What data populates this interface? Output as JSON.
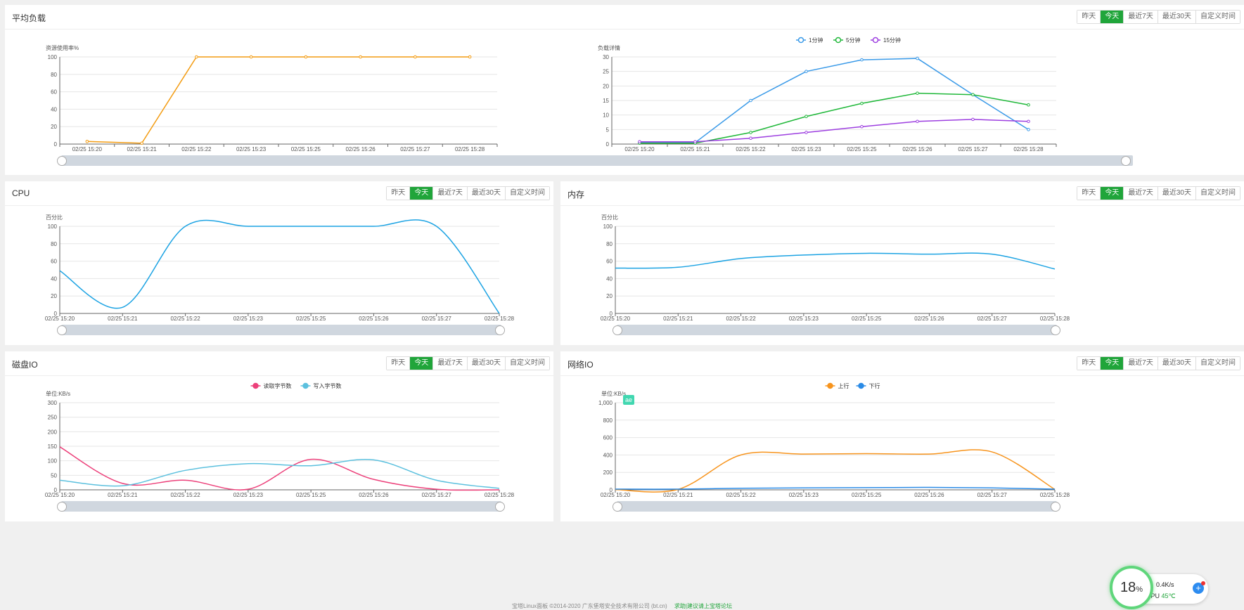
{
  "range_buttons": [
    "昨天",
    "今天",
    "最近7天",
    "最近30天",
    "自定义时间"
  ],
  "panels": {
    "load": {
      "title": "平均负载"
    },
    "cpu": {
      "title": "CPU"
    },
    "memory": {
      "title": "内存"
    },
    "disk": {
      "title": "磁盘IO"
    },
    "network": {
      "title": "网络IO"
    }
  },
  "chart_data": [
    {
      "id": "load-usage",
      "type": "line",
      "ylabel": "资源使用率%",
      "ylim": [
        0,
        100
      ],
      "yticks": [
        0,
        20,
        40,
        60,
        80,
        100
      ],
      "categories": [
        "02/25 15:20",
        "02/25 15:21",
        "02/25 15:22",
        "02/25 15:23",
        "02/25 15:25",
        "02/25 15:26",
        "02/25 15:27",
        "02/25 15:28"
      ],
      "x": [
        0.5,
        1.5,
        2.5,
        3.5,
        4.5,
        5.5,
        6.5,
        7.5
      ],
      "series": [
        {
          "name": "资源使用率",
          "color": "#f39c12",
          "values": [
            3,
            1,
            100,
            100,
            100,
            100,
            100,
            100
          ]
        }
      ]
    },
    {
      "id": "load-detail",
      "type": "line",
      "ylabel": "负载详情",
      "ylim": [
        0,
        30
      ],
      "yticks": [
        0,
        5,
        10,
        15,
        20,
        25,
        30
      ],
      "categories": [
        "02/25 15:20",
        "02/25 15:21",
        "02/25 15:22",
        "02/25 15:23",
        "02/25 15:25",
        "02/25 15:26",
        "02/25 15:27",
        "02/25 15:28"
      ],
      "x": [
        0.5,
        1.5,
        2.5,
        3.5,
        4.5,
        5.5,
        6.5,
        7.5
      ],
      "legend": [
        "1分钟",
        "5分钟",
        "15分钟"
      ],
      "series": [
        {
          "name": "1分钟",
          "color": "#3a9ae8",
          "values": [
            0.5,
            0.5,
            15,
            25,
            29,
            29.5,
            17,
            5
          ]
        },
        {
          "name": "5分钟",
          "color": "#20b83a",
          "values": [
            0.3,
            0.3,
            4,
            9.5,
            14,
            17.5,
            17,
            13.5
          ]
        },
        {
          "name": "15分钟",
          "color": "#9d3fe0",
          "values": [
            0.8,
            0.8,
            2,
            4,
            6,
            7.8,
            8.5,
            7.8
          ]
        }
      ]
    },
    {
      "id": "cpu",
      "type": "line",
      "ylabel": "百分比",
      "ylim": [
        0,
        100
      ],
      "yticks": [
        0,
        20,
        40,
        60,
        80,
        100
      ],
      "categories": [
        "02/25 15:20",
        "02/25 15:21",
        "02/25 15:22",
        "02/25 15:23",
        "02/25 15:25",
        "02/25 15:26",
        "02/25 15:27",
        "02/25 15:28"
      ],
      "x": [
        0,
        1,
        2,
        3,
        4,
        5,
        6,
        7
      ],
      "series": [
        {
          "name": "CPU",
          "color": "#1ca3e3",
          "values": [
            49,
            7,
            100,
            100,
            100,
            100,
            100,
            0
          ]
        }
      ]
    },
    {
      "id": "memory",
      "type": "line",
      "ylabel": "百分比",
      "ylim": [
        0,
        100
      ],
      "yticks": [
        0,
        20,
        40,
        60,
        80,
        100
      ],
      "categories": [
        "02/25 15:20",
        "02/25 15:21",
        "02/25 15:22",
        "02/25 15:23",
        "02/25 15:25",
        "02/25 15:26",
        "02/25 15:27",
        "02/25 15:28"
      ],
      "x": [
        0,
        1,
        2,
        3,
        4,
        5,
        6,
        7
      ],
      "series": [
        {
          "name": "内存",
          "color": "#1ca3e3",
          "values": [
            52,
            53,
            63,
            67,
            69,
            68,
            68,
            51
          ]
        }
      ]
    },
    {
      "id": "disk",
      "type": "line",
      "ylabel": "单位:KB/s",
      "ylim": [
        0,
        300
      ],
      "yticks": [
        0,
        50,
        100,
        150,
        200,
        250,
        300
      ],
      "categories": [
        "02/25 15:20",
        "02/25 15:21",
        "02/25 15:22",
        "02/25 15:23",
        "02/25 15:25",
        "02/25 15:26",
        "02/25 15:27",
        "02/25 15:28"
      ],
      "x": [
        0,
        1,
        2,
        3,
        4,
        5,
        6,
        7
      ],
      "legend": [
        "读取字节数",
        "写入字节数"
      ],
      "series": [
        {
          "name": "读取字节数",
          "color": "#ec407a",
          "values": [
            148,
            22,
            33,
            2,
            105,
            36,
            2,
            0
          ]
        },
        {
          "name": "写入字节数",
          "color": "#5bc0de",
          "values": [
            33,
            14,
            67,
            90,
            83,
            103,
            33,
            5
          ]
        }
      ]
    },
    {
      "id": "network",
      "type": "line",
      "ylabel": "单位:KB/s",
      "ylim": [
        0,
        1000
      ],
      "yticks": [
        0,
        200,
        400,
        600,
        800,
        1000
      ],
      "ytick_labels": [
        "0",
        "200",
        "400",
        "600",
        "800",
        "1,000"
      ],
      "categories": [
        "02/25 15:20",
        "02/25 15:21",
        "02/25 15:22",
        "02/25 15:23",
        "02/25 15:25",
        "02/25 15:26",
        "02/25 15:27",
        "02/25 15:28"
      ],
      "x": [
        0,
        1,
        2,
        3,
        4,
        5,
        6,
        7
      ],
      "legend": [
        "上行",
        "下行"
      ],
      "series": [
        {
          "name": "上行",
          "color": "#f7941d",
          "values": [
            3,
            5,
            400,
            410,
            415,
            410,
            435,
            5
          ]
        },
        {
          "name": "下行",
          "color": "#2b8be6",
          "values": [
            8,
            8,
            18,
            22,
            25,
            28,
            22,
            8
          ]
        }
      ]
    }
  ],
  "footer": {
    "copyright": "宝塔Linux面板 ©2014-2020 广东堡塔安全技术有限公司 (bt.cn)",
    "link": "求助|建议请上宝塔论坛"
  },
  "float_tag": "ae",
  "monitor": {
    "cpu_percent": "18",
    "percent_sign": "%",
    "net_speed": "0.4K/s",
    "cpu_label": "CPU",
    "cpu_temp": "45℃"
  }
}
